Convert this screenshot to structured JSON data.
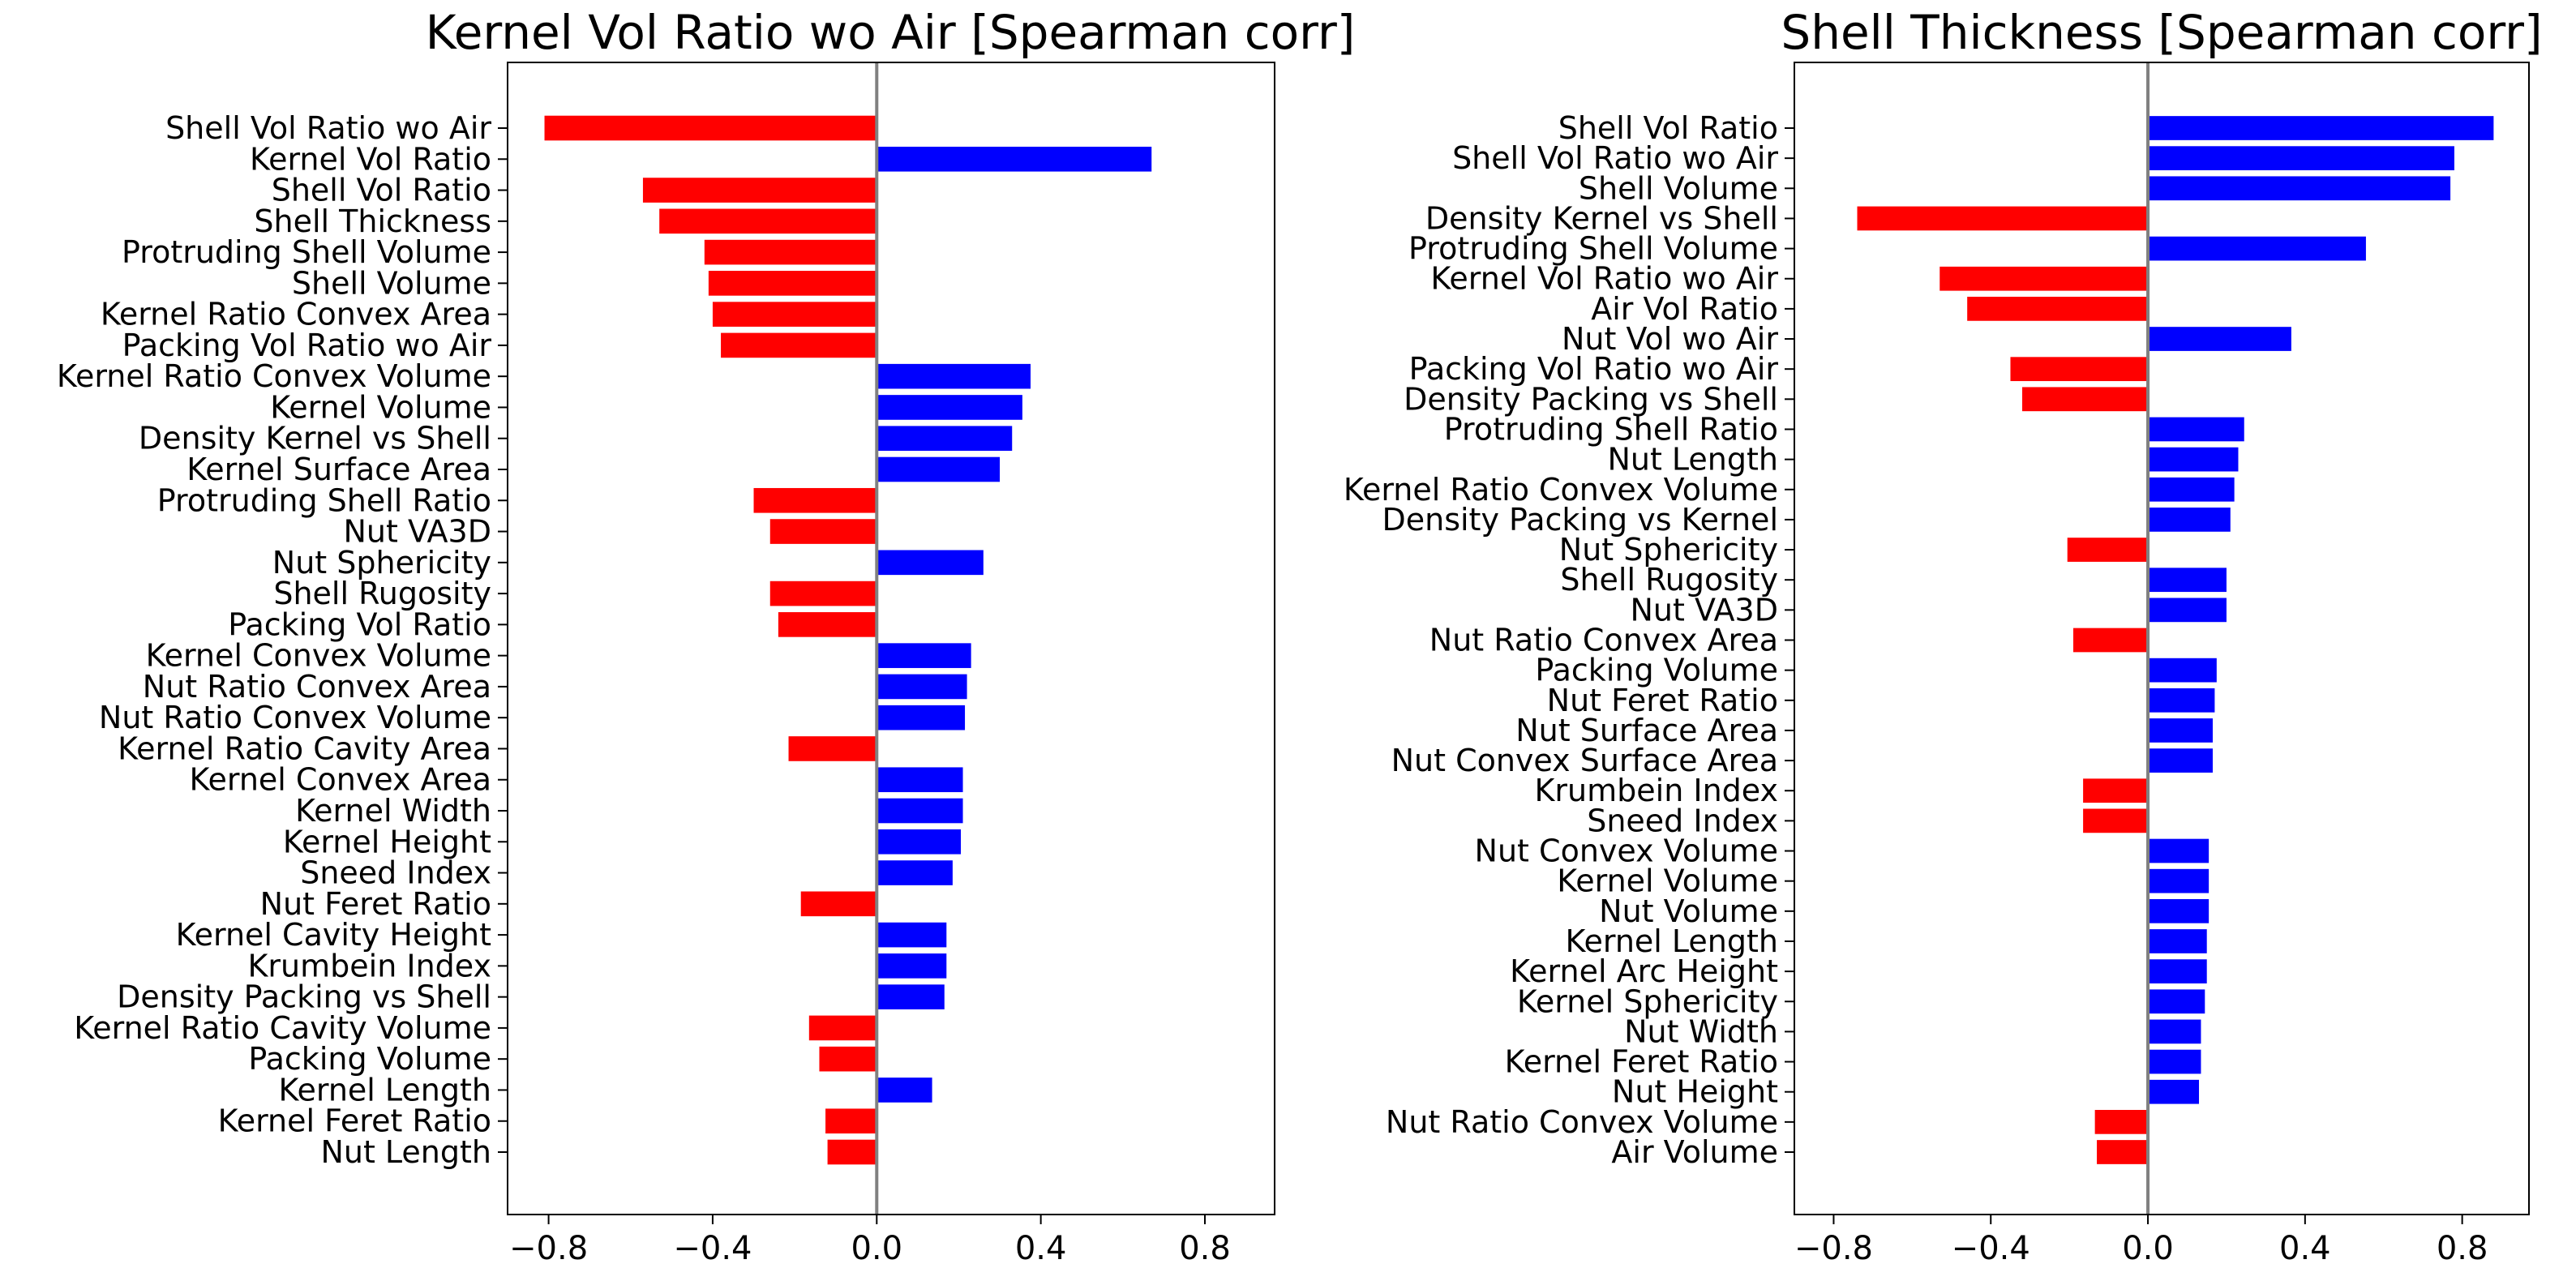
{
  "chart_data": [
    {
      "type": "bar",
      "orientation": "horizontal",
      "title": "Kernel Vol Ratio wo Air [Spearman corr]",
      "xlabel": "",
      "ylabel": "",
      "xlim": [
        -0.9,
        0.97
      ],
      "xticks": [
        -0.8,
        -0.4,
        0.0,
        0.4,
        0.8
      ],
      "xtick_labels": [
        "−0.8",
        "−0.4",
        "0.0",
        "0.4",
        "0.8"
      ],
      "grid": false,
      "positive_color": "#0000ff",
      "negative_color": "#ff0000",
      "zero_line_color": "#808080",
      "categories": [
        "Shell Vol Ratio wo Air",
        "Kernel Vol Ratio",
        "Shell Vol Ratio",
        "Shell Thickness",
        "Protruding Shell Volume",
        "Shell Volume",
        "Kernel Ratio Convex Area",
        "Packing Vol Ratio wo Air",
        "Kernel Ratio Convex Volume",
        "Kernel Volume",
        "Density Kernel vs Shell",
        "Kernel Surface Area",
        "Protruding Shell Ratio",
        "Nut VA3D",
        "Nut Sphericity",
        "Shell Rugosity",
        "Packing Vol Ratio",
        "Kernel Convex Volume",
        "Nut Ratio Convex Area",
        "Nut Ratio Convex Volume",
        "Kernel Ratio Cavity Area",
        "Kernel Convex Area",
        "Kernel Width",
        "Kernel Height",
        "Sneed Index",
        "Nut Feret Ratio",
        "Kernel Cavity Height",
        "Krumbein Index",
        "Density Packing vs Shell",
        "Kernel Ratio Cavity Volume",
        "Packing Volume",
        "Kernel Length",
        "Kernel Feret Ratio",
        "Nut Length"
      ],
      "values": [
        -0.81,
        0.67,
        -0.57,
        -0.53,
        -0.42,
        -0.41,
        -0.4,
        -0.38,
        0.375,
        0.355,
        0.33,
        0.3,
        -0.3,
        -0.26,
        0.26,
        -0.26,
        -0.24,
        0.23,
        0.22,
        0.215,
        -0.215,
        0.21,
        0.21,
        0.205,
        0.185,
        -0.185,
        0.17,
        0.17,
        0.165,
        -0.165,
        -0.14,
        0.135,
        -0.125,
        -0.12
      ]
    },
    {
      "type": "bar",
      "orientation": "horizontal",
      "title": "Shell Thickness [Spearman corr]",
      "xlabel": "",
      "ylabel": "",
      "xlim": [
        -0.9,
        0.97
      ],
      "xticks": [
        -0.8,
        -0.4,
        0.0,
        0.4,
        0.8
      ],
      "xtick_labels": [
        "−0.8",
        "−0.4",
        "0.0",
        "0.4",
        "0.8"
      ],
      "grid": false,
      "positive_color": "#0000ff",
      "negative_color": "#ff0000",
      "zero_line_color": "#808080",
      "categories": [
        "Shell Vol Ratio",
        "Shell Vol Ratio wo Air",
        "Shell Volume",
        "Density Kernel vs Shell",
        "Protruding Shell Volume",
        "Kernel Vol Ratio wo Air",
        "Air Vol Ratio",
        "Nut Vol wo Air",
        "Packing Vol Ratio wo Air",
        "Density Packing vs Shell",
        "Protruding Shell Ratio",
        "Nut Length",
        "Kernel Ratio Convex Volume",
        "Density Packing vs Kernel",
        "Nut Sphericity",
        "Shell Rugosity",
        "Nut VA3D",
        "Nut Ratio Convex Area",
        "Packing Volume",
        "Nut Feret Ratio",
        "Nut Surface Area",
        "Nut Convex Surface Area",
        "Krumbein Index",
        "Sneed Index",
        "Nut Convex Volume",
        "Kernel Volume",
        "Nut Volume",
        "Kernel Length",
        "Kernel Arc Height",
        "Kernel Sphericity",
        "Nut Width",
        "Kernel Feret Ratio",
        "Nut Height",
        "Nut Ratio Convex Volume",
        "Air Volume"
      ],
      "values": [
        0.88,
        0.78,
        0.77,
        -0.74,
        0.555,
        -0.53,
        -0.46,
        0.365,
        -0.35,
        -0.32,
        0.245,
        0.23,
        0.22,
        0.21,
        -0.205,
        0.2,
        0.2,
        -0.19,
        0.175,
        0.17,
        0.165,
        0.165,
        -0.165,
        -0.165,
        0.155,
        0.155,
        0.155,
        0.15,
        0.15,
        0.145,
        0.135,
        0.135,
        0.13,
        -0.135,
        -0.13
      ]
    }
  ]
}
